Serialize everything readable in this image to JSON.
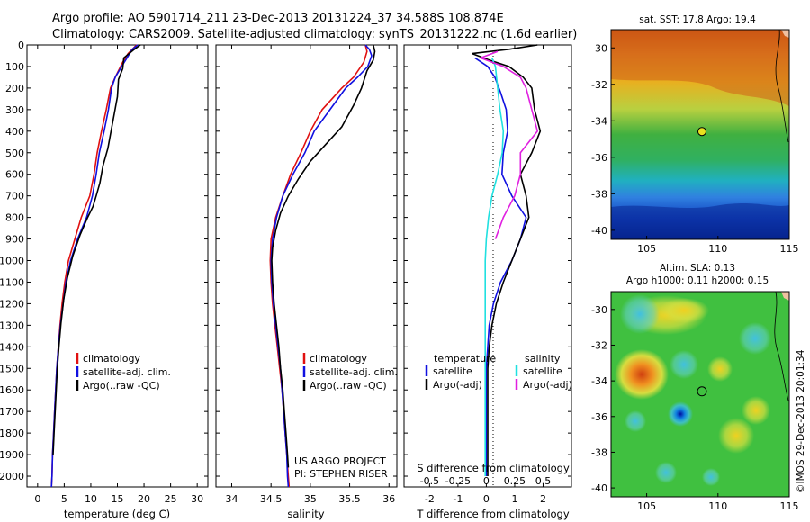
{
  "header": {
    "line1": "Argo profile: AO 5901714_211 23-Dec-2013 20131224_37 34.588S 108.874E",
    "line2": "Climatology: CARS2009. Satellite-adjusted climatology: synTS_20131222.nc (1.6d earlier)"
  },
  "colors": {
    "climatology": "#e01010",
    "satellite": "#1010e0",
    "argo": "#000000",
    "salinity_satellite": "#20e0e0",
    "salinity_argo": "#e020e0"
  },
  "depth_axis": {
    "ticks": [
      "0",
      "100",
      "200",
      "300",
      "400",
      "500",
      "600",
      "700",
      "800",
      "900",
      "1000",
      "1100",
      "1200",
      "1300",
      "1400",
      "1500",
      "1600",
      "1700",
      "1800",
      "1900",
      "2000"
    ]
  },
  "chart_data": [
    {
      "id": "temperature",
      "type": "line",
      "xlabel": "temperature (deg C)",
      "xlim": [
        -2,
        32
      ],
      "ylim": [
        2050,
        0
      ],
      "xticks": [
        "0",
        "5",
        "10",
        "15",
        "20",
        "25",
        "30"
      ],
      "legend": [
        "climatology",
        "satellite-adj. clim.",
        "Argo(..raw -QC)"
      ],
      "series": [
        {
          "name": "climatology",
          "color": "#e01010",
          "points": [
            [
              18.6,
              0
            ],
            [
              17,
              40
            ],
            [
              16,
              80
            ],
            [
              14.6,
              150
            ],
            [
              13.7,
              200
            ],
            [
              12.9,
              300
            ],
            [
              12,
              400
            ],
            [
              11.2,
              500
            ],
            [
              10.6,
              600
            ],
            [
              9.8,
              700
            ],
            [
              8.2,
              800
            ],
            [
              7,
              900
            ],
            [
              5.8,
              1000
            ],
            [
              5.1,
              1100
            ],
            [
              4.6,
              1200
            ],
            [
              4.2,
              1300
            ],
            [
              3.9,
              1400
            ],
            [
              3.6,
              1500
            ],
            [
              3.4,
              1600
            ],
            [
              3.2,
              1700
            ],
            [
              3.0,
              1800
            ],
            [
              2.8,
              1900
            ],
            [
              2.7,
              2000
            ],
            [
              2.6,
              2050
            ]
          ]
        },
        {
          "name": "satellite-adj. clim.",
          "color": "#1010e0",
          "points": [
            [
              18.8,
              0
            ],
            [
              17.8,
              20
            ],
            [
              16.8,
              60
            ],
            [
              15.8,
              100
            ],
            [
              14.6,
              150
            ],
            [
              13.9,
              200
            ],
            [
              13.3,
              300
            ],
            [
              12.5,
              400
            ],
            [
              11.6,
              500
            ],
            [
              11,
              600
            ],
            [
              10.3,
              700
            ],
            [
              9.2,
              800
            ],
            [
              7.5,
              900
            ],
            [
              6.2,
              1000
            ],
            [
              5.3,
              1100
            ],
            [
              4.8,
              1200
            ],
            [
              4.3,
              1300
            ],
            [
              3.9,
              1400
            ],
            [
              3.6,
              1500
            ],
            [
              3.4,
              1600
            ],
            [
              3.2,
              1700
            ],
            [
              3.0,
              1800
            ],
            [
              2.8,
              1900
            ],
            [
              2.7,
              2000
            ],
            [
              2.6,
              2050
            ]
          ]
        },
        {
          "name": "Argo(..raw -QC)",
          "color": "#000000",
          "points": [
            [
              19.3,
              0
            ],
            [
              18.2,
              20
            ],
            [
              16.2,
              60
            ],
            [
              16,
              110
            ],
            [
              15.2,
              160
            ],
            [
              15,
              240
            ],
            [
              14.4,
              320
            ],
            [
              13.8,
              400
            ],
            [
              13.2,
              480
            ],
            [
              12.3,
              560
            ],
            [
              11.7,
              640
            ],
            [
              11,
              700
            ],
            [
              10.4,
              750
            ],
            [
              9.4,
              800
            ],
            [
              8,
              880
            ],
            [
              6.6,
              980
            ],
            [
              5.6,
              1080
            ],
            [
              4.9,
              1180
            ],
            [
              4.4,
              1290
            ],
            [
              4.0,
              1400
            ],
            [
              3.7,
              1500
            ],
            [
              3.5,
              1600
            ],
            [
              3.3,
              1700
            ],
            [
              3.1,
              1800
            ],
            [
              2.9,
              1900
            ]
          ]
        }
      ]
    },
    {
      "id": "salinity",
      "type": "line",
      "xlabel": "salinity",
      "xlim": [
        33.8,
        36.1
      ],
      "ylim": [
        2050,
        0
      ],
      "xticks": [
        "34",
        "34.5",
        "35",
        "35.5",
        "36"
      ],
      "legend": [
        "climatology",
        "satellite-adj. clim.",
        "Argo(..raw -QC)"
      ],
      "annotation": [
        "US ARGO PROJECT",
        "PI: STEPHEN RISER"
      ],
      "series": [
        {
          "name": "climatology",
          "color": "#e01010",
          "points": [
            [
              35.7,
              0
            ],
            [
              35.72,
              30
            ],
            [
              35.68,
              80
            ],
            [
              35.55,
              150
            ],
            [
              35.4,
              200
            ],
            [
              35.15,
              300
            ],
            [
              35,
              400
            ],
            [
              34.88,
              500
            ],
            [
              34.75,
              600
            ],
            [
              34.65,
              700
            ],
            [
              34.56,
              800
            ],
            [
              34.5,
              900
            ],
            [
              34.49,
              1000
            ],
            [
              34.5,
              1100
            ],
            [
              34.52,
              1200
            ],
            [
              34.55,
              1300
            ],
            [
              34.58,
              1400
            ],
            [
              34.61,
              1500
            ],
            [
              34.64,
              1600
            ],
            [
              34.66,
              1700
            ],
            [
              34.68,
              1800
            ],
            [
              34.7,
              1900
            ],
            [
              34.72,
              2000
            ],
            [
              34.73,
              2050
            ]
          ]
        },
        {
          "name": "satellite-adj. clim.",
          "color": "#1010e0",
          "points": [
            [
              35.7,
              0
            ],
            [
              35.75,
              20
            ],
            [
              35.78,
              50
            ],
            [
              35.73,
              100
            ],
            [
              35.6,
              150
            ],
            [
              35.45,
              200
            ],
            [
              35.25,
              300
            ],
            [
              35.05,
              400
            ],
            [
              34.93,
              500
            ],
            [
              34.78,
              600
            ],
            [
              34.65,
              700
            ],
            [
              34.57,
              800
            ],
            [
              34.52,
              900
            ],
            [
              34.5,
              1000
            ],
            [
              34.51,
              1100
            ],
            [
              34.53,
              1200
            ],
            [
              34.56,
              1300
            ],
            [
              34.59,
              1400
            ],
            [
              34.62,
              1500
            ],
            [
              34.64,
              1600
            ],
            [
              34.66,
              1700
            ],
            [
              34.68,
              1800
            ],
            [
              34.7,
              1900
            ],
            [
              34.71,
              2000
            ],
            [
              34.72,
              2050
            ]
          ]
        },
        {
          "name": "Argo(..raw -QC)",
          "color": "#000000",
          "points": [
            [
              35.8,
              0
            ],
            [
              35.82,
              30
            ],
            [
              35.8,
              70
            ],
            [
              35.72,
              120
            ],
            [
              35.65,
              200
            ],
            [
              35.55,
              280
            ],
            [
              35.4,
              380
            ],
            [
              35.2,
              460
            ],
            [
              35.0,
              540
            ],
            [
              34.85,
              620
            ],
            [
              34.72,
              700
            ],
            [
              34.62,
              780
            ],
            [
              34.56,
              860
            ],
            [
              34.52,
              940
            ],
            [
              34.51,
              1000
            ],
            [
              34.52,
              1100
            ],
            [
              34.54,
              1200
            ],
            [
              34.57,
              1300
            ],
            [
              34.6,
              1400
            ],
            [
              34.62,
              1500
            ],
            [
              34.65,
              1600
            ],
            [
              34.67,
              1700
            ],
            [
              34.69,
              1800
            ],
            [
              34.71,
              1900
            ],
            [
              34.72,
              1960
            ]
          ]
        }
      ]
    },
    {
      "id": "difference",
      "type": "line",
      "xlabel": "T difference from climatology",
      "xlabel2": "S difference from climatology",
      "xlim": [
        -2.9,
        3.0
      ],
      "ylim": [
        2050,
        0
      ],
      "xticks": [
        "-2",
        "-1",
        "0",
        "1",
        "2"
      ],
      "sticks": [
        "-0.5",
        "-0.25",
        "0",
        "0.25",
        "0.5"
      ],
      "legend_temperature": {
        "title": "temperature",
        "items": [
          "satellite",
          "Argo(-adj)"
        ]
      },
      "legend_salinity": {
        "title": "salinity",
        "items": [
          "satellite",
          "Argo(-adj)"
        ]
      },
      "series": [
        {
          "name": "satellite",
          "group": "temperature",
          "color": "#1010e0",
          "points": [
            [
              -0.4,
              60
            ],
            [
              0.05,
              100
            ],
            [
              0.3,
              150
            ],
            [
              0.5,
              220
            ],
            [
              0.7,
              300
            ],
            [
              0.75,
              400
            ],
            [
              0.6,
              500
            ],
            [
              0.55,
              600
            ],
            [
              0.9,
              700
            ],
            [
              1.4,
              800
            ],
            [
              1.2,
              900
            ],
            [
              0.9,
              1000
            ],
            [
              0.5,
              1100
            ],
            [
              0.25,
              1200
            ],
            [
              0.1,
              1300
            ],
            [
              0.05,
              1400
            ],
            [
              0,
              1500
            ],
            [
              0,
              1600
            ],
            [
              0,
              1700
            ],
            [
              0,
              1800
            ],
            [
              0,
              1900
            ],
            [
              0,
              2000
            ]
          ]
        },
        {
          "name": "Argo(-adj)",
          "group": "temperature",
          "color": "#000000",
          "points": [
            [
              1.8,
              0
            ],
            [
              0.8,
              20
            ],
            [
              -0.5,
              40
            ],
            [
              0.1,
              70
            ],
            [
              0.8,
              100
            ],
            [
              1.3,
              150
            ],
            [
              1.6,
              200
            ],
            [
              1.7,
              300
            ],
            [
              1.9,
              400
            ],
            [
              1.6,
              500
            ],
            [
              1.2,
              600
            ],
            [
              1.4,
              700
            ],
            [
              1.5,
              800
            ],
            [
              1.2,
              900
            ],
            [
              0.9,
              1000
            ],
            [
              0.6,
              1100
            ],
            [
              0.35,
              1200
            ],
            [
              0.2,
              1300
            ],
            [
              0.1,
              1400
            ],
            [
              0.05,
              1500
            ],
            [
              0.05,
              1600
            ],
            [
              0.05,
              1700
            ],
            [
              0.05,
              1800
            ],
            [
              0.05,
              1900
            ],
            [
              0.05,
              2000
            ]
          ]
        },
        {
          "name": "satellite",
          "group": "salinity",
          "color": "#20e0e0",
          "points": [
            [
              0.05,
              60
            ],
            [
              0.08,
              100
            ],
            [
              0.1,
              200
            ],
            [
              0.12,
              300
            ],
            [
              0.15,
              400
            ],
            [
              0.14,
              500
            ],
            [
              0.1,
              600
            ],
            [
              0.05,
              700
            ],
            [
              0.02,
              800
            ],
            [
              0,
              900
            ],
            [
              -0.01,
              1000
            ],
            [
              -0.01,
              1200
            ],
            [
              -0.01,
              1400
            ],
            [
              -0.01,
              1600
            ],
            [
              -0.01,
              1800
            ],
            [
              -0.01,
              2000
            ]
          ]
        },
        {
          "name": "Argo(-adj)",
          "group": "salinity",
          "color": "#e020e0",
          "points": [
            [
              0.1,
              30
            ],
            [
              -0.05,
              60
            ],
            [
              0.15,
              100
            ],
            [
              0.3,
              150
            ],
            [
              0.35,
              200
            ],
            [
              0.4,
              300
            ],
            [
              0.45,
              400
            ],
            [
              0.3,
              500
            ],
            [
              0.3,
              600
            ],
            [
              0.25,
              700
            ],
            [
              0.15,
              800
            ],
            [
              0.08,
              900
            ]
          ]
        }
      ]
    }
  ],
  "map_sst": {
    "title": "sat. SST: 17.8 Argo: 19.4",
    "yticks": [
      "-30",
      "-32",
      "-34",
      "-36",
      "-38",
      "-40"
    ],
    "xticks": [
      "105",
      "110",
      "115"
    ],
    "lon_range": [
      102.5,
      115
    ],
    "lat_range": [
      -40.5,
      -29
    ],
    "marker": {
      "lon": 108.874,
      "lat": -34.588
    }
  },
  "map_sla": {
    "title_line1": "Altim. SLA: 0.13",
    "title_line2": "Argo h1000: 0.11 h2000: 0.15",
    "yticks": [
      "-30",
      "-32",
      "-34",
      "-36",
      "-38",
      "-40"
    ],
    "xticks": [
      "105",
      "110",
      "115"
    ],
    "lon_range": [
      102.5,
      115
    ],
    "lat_range": [
      -40.5,
      -29
    ],
    "marker": {
      "lon": 108.874,
      "lat": -34.588
    }
  },
  "credit": "©IMOS 29-Dec-2013 20:01:34"
}
